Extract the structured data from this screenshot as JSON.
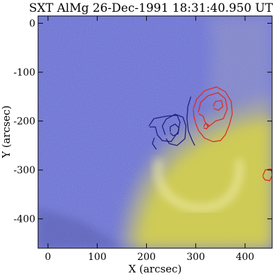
{
  "chart_data": {
    "type": "heatmap",
    "title": "SXT AlMg 26-Dec-1991 18:31:40.950 UT",
    "xlabel": "X (arcsec)",
    "ylabel": "Y (arcsec)",
    "xlim": [
      -20,
      455
    ],
    "ylim": [
      -460,
      15
    ],
    "xticks": [
      0,
      100,
      200,
      300,
      400
    ],
    "yticks": [
      0,
      -100,
      -200,
      -300,
      -400
    ],
    "colors": {
      "background": "#7b82e0",
      "emission": "#d6d24a",
      "contour_blue": "#1f1f7a",
      "contour_red": "#e02a1f",
      "frame": "#000000"
    },
    "series": [],
    "contours": [
      {
        "color": "contour_blue",
        "level": 1,
        "points": [
          [
            205,
            -210
          ],
          [
            215,
            -195
          ],
          [
            240,
            -190
          ],
          [
            262,
            -188
          ],
          [
            268,
            -202
          ],
          [
            264,
            -222
          ],
          [
            250,
            -242
          ],
          [
            232,
            -240
          ],
          [
            222,
            -228
          ],
          [
            218,
            -212
          ],
          [
            206,
            -212
          ]
        ]
      },
      {
        "color": "contour_blue",
        "level": 1,
        "points": [
          [
            220,
            -258
          ],
          [
            212,
            -246
          ],
          [
            216,
            -234
          ]
        ]
      },
      {
        "color": "contour_blue",
        "level": 2,
        "points": [
          [
            238,
            -228
          ],
          [
            232,
            -210
          ],
          [
            240,
            -196
          ],
          [
            258,
            -186
          ],
          [
            274,
            -192
          ],
          [
            280,
            -210
          ],
          [
            278,
            -236
          ],
          [
            262,
            -250
          ],
          [
            246,
            -246
          ],
          [
            240,
            -236
          ]
        ]
      },
      {
        "color": "contour_blue",
        "level": 3,
        "points": [
          [
            248,
            -222
          ],
          [
            248,
            -212
          ],
          [
            258,
            -206
          ],
          [
            266,
            -214
          ],
          [
            264,
            -226
          ],
          [
            254,
            -230
          ],
          [
            248,
            -224
          ]
        ]
      },
      {
        "color": "contour_blue",
        "level": 1,
        "points": [
          [
            290,
            -150
          ],
          [
            284,
            -170
          ],
          [
            282,
            -195
          ],
          [
            285,
            -220
          ],
          [
            292,
            -238
          ],
          [
            298,
            -250
          ]
        ]
      },
      {
        "color": "contour_red",
        "level": 1,
        "points": [
          [
            295,
            -175
          ],
          [
            302,
            -155
          ],
          [
            318,
            -138
          ],
          [
            342,
            -130
          ],
          [
            360,
            -140
          ],
          [
            372,
            -160
          ],
          [
            374,
            -185
          ],
          [
            368,
            -208
          ],
          [
            360,
            -228
          ],
          [
            350,
            -240
          ],
          [
            335,
            -242
          ],
          [
            318,
            -235
          ],
          [
            306,
            -220
          ],
          [
            300,
            -205
          ],
          [
            296,
            -190
          ],
          [
            295,
            -176
          ]
        ]
      },
      {
        "color": "contour_red",
        "level": 2,
        "points": [
          [
            305,
            -182
          ],
          [
            310,
            -162
          ],
          [
            325,
            -148
          ],
          [
            345,
            -142
          ],
          [
            360,
            -154
          ],
          [
            364,
            -175
          ],
          [
            356,
            -195
          ],
          [
            340,
            -200
          ],
          [
            325,
            -212
          ],
          [
            318,
            -200
          ],
          [
            315,
            -190
          ],
          [
            306,
            -185
          ]
        ]
      },
      {
        "color": "contour_red",
        "level": 3,
        "points": [
          [
            335,
            -170
          ],
          [
            340,
            -160
          ],
          [
            352,
            -158
          ],
          [
            355,
            -170
          ],
          [
            346,
            -178
          ],
          [
            336,
            -174
          ]
        ]
      },
      {
        "color": "contour_red",
        "level": 3,
        "points": [
          [
            316,
            -212
          ],
          [
            320,
            -204
          ],
          [
            326,
            -208
          ],
          [
            322,
            -216
          ],
          [
            316,
            -214
          ]
        ]
      },
      {
        "color": "contour_red",
        "level": 1,
        "points": [
          [
            436,
            -312
          ],
          [
            441,
            -300
          ],
          [
            452,
            -298
          ],
          [
            456,
            -310
          ],
          [
            450,
            -322
          ],
          [
            440,
            -320
          ],
          [
            436,
            -313
          ]
        ]
      }
    ]
  }
}
